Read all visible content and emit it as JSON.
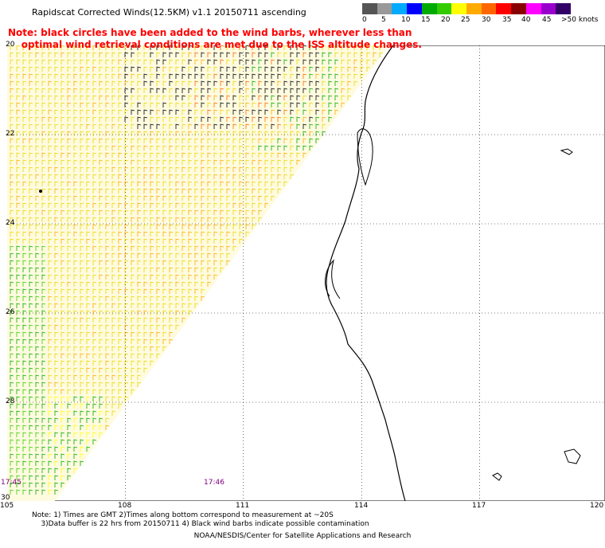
{
  "title": "Rapidscat Corrected Winds(12.5KM) v1.1 20150711 ascending",
  "note": "Note: black circles have been added to the wind barbs, wherever less than\n    optimal wind retrieval conditions are met due to the ISS altitude changes.",
  "legend": {
    "colors": [
      "#555555",
      "#999999",
      "#00aaff",
      "#0000ff",
      "#00aa00",
      "#33cc00",
      "#ffff00",
      "#ffaa00",
      "#ff6600",
      "#ff0000",
      "#880000",
      "#ff00ff",
      "#9900cc",
      "#330066"
    ],
    "labels": [
      "0",
      "5",
      "10",
      "15",
      "20",
      "25",
      "30",
      "35",
      "40",
      "45",
      ">50 knots"
    ]
  },
  "map": {
    "lat_labels": [
      "20",
      "22",
      "24",
      "26",
      "28",
      "30"
    ],
    "lon_labels": [
      "105",
      "108",
      "111",
      "114",
      "117",
      "120"
    ],
    "time_labels": [
      "17:45",
      "17:46"
    ]
  },
  "footnote": "Note: 1) Times are GMT 2)Times along bottom correspond to measurement at ~20S\n    3)Data buffer is 22 hrs from 20150711 4) Black wind barbs indicate possible contamination",
  "credit": "NOAA/NESDIS/Center for Satellite Applications and Research"
}
